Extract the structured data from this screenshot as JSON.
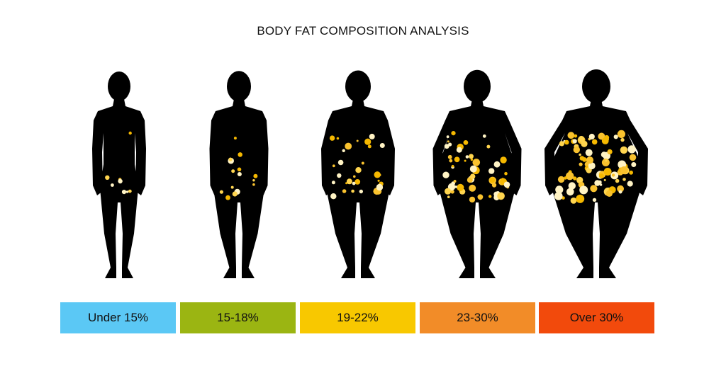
{
  "title": "BODY FAT COMPOSITION ANALYSIS",
  "categories": [
    "Under 15%",
    "15-18%",
    "19-22%",
    "23-30%",
    "Over 30%"
  ]
}
